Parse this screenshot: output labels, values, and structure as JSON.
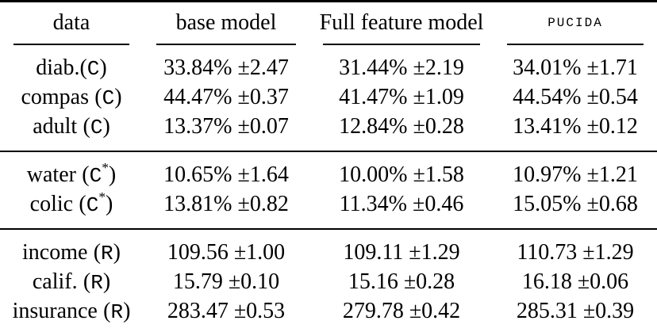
{
  "table": {
    "paren_open": "(",
    "paren_close": ")",
    "columns": [
      {
        "label": "data"
      },
      {
        "label": "base model"
      },
      {
        "label": "Full feature model"
      },
      {
        "label": "PUCIDA"
      }
    ],
    "sections": [
      {
        "rows": [
          {
            "name": "diab.",
            "tag": "C",
            "sup": "",
            "values": [
              "33.84% ±2.47",
              "31.44% ±2.19",
              "34.01% ±1.71"
            ]
          },
          {
            "name": "compas",
            "tag": "C",
            "sup": "",
            "values": [
              "44.47% ±0.37",
              "41.47% ±1.09",
              "44.54% ±0.54"
            ]
          },
          {
            "name": "adult",
            "tag": "C",
            "sup": "",
            "values": [
              "13.37% ±0.07",
              "12.84% ±0.28",
              "13.41% ±0.12"
            ]
          }
        ]
      },
      {
        "rows": [
          {
            "name": "water",
            "tag": "C",
            "sup": "*",
            "values": [
              "10.65% ±1.64",
              "10.00% ±1.58",
              "10.97% ±1.21"
            ]
          },
          {
            "name": "colic",
            "tag": "C",
            "sup": "*",
            "values": [
              "13.81% ±0.82",
              "11.34% ±0.46",
              "15.05% ±0.68"
            ]
          }
        ]
      },
      {
        "rows": [
          {
            "name": "income",
            "tag": "R",
            "sup": "",
            "values": [
              "109.56 ±1.00",
              "109.11 ±1.29",
              "110.73 ±1.29"
            ]
          },
          {
            "name": "calif.",
            "tag": "R",
            "sup": "",
            "values": [
              "15.79 ±0.10",
              "15.16 ±0.28",
              "16.18 ±0.06"
            ]
          },
          {
            "name": "insurance",
            "tag": "R",
            "sup": "",
            "values": [
              "283.47 ±0.53",
              "279.78 ±0.42",
              "285.31 ±0.39"
            ]
          }
        ]
      }
    ]
  }
}
